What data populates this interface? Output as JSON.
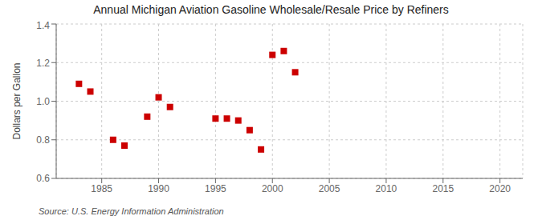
{
  "chart_data": {
    "type": "scatter",
    "title": "Annual Michigan Aviation Gasoline Wholesale/Resale Price by Refiners",
    "y_label": "Dollars per Gallon",
    "annotations": [
      "Source: U.S. Energy Information Administration"
    ],
    "x": [
      1983,
      1984,
      1986,
      1987,
      1989,
      1990,
      1991,
      1995,
      1996,
      1997,
      1998,
      1999,
      2000,
      2001,
      2002
    ],
    "values": [
      1.09,
      1.05,
      0.8,
      0.77,
      0.92,
      1.02,
      0.97,
      0.91,
      0.91,
      0.9,
      0.85,
      0.75,
      1.24,
      1.26,
      1.15
    ],
    "color": "#cc0000",
    "marker": "square",
    "xlim": [
      1981,
      2022
    ],
    "xticks": [
      1985,
      1990,
      1995,
      2000,
      2005,
      2010,
      2015,
      2020
    ],
    "ylim": [
      0.6,
      1.4
    ],
    "yticks": [
      0.6,
      0.8,
      {
        "value": 1,
        "label": "1.0"
      },
      1.2,
      1.4
    ],
    "grid": true
  }
}
